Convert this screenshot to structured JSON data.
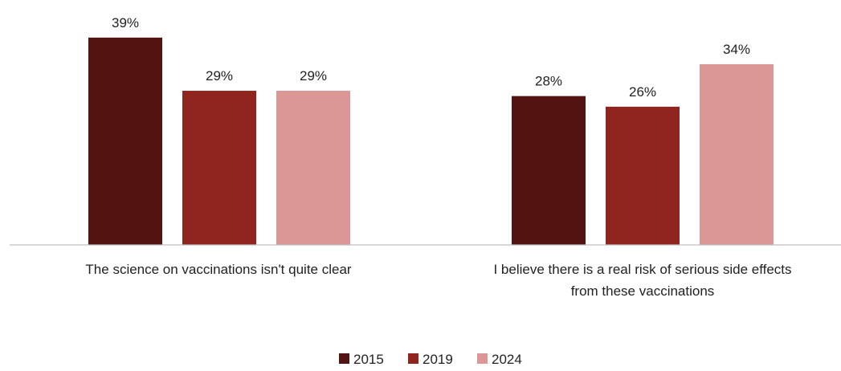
{
  "chart_data": {
    "type": "bar",
    "categories": [
      [
        "The science on vaccinations isn't quite clear"
      ],
      [
        "I believe there is a real risk of serious side effects",
        "from these vaccinations"
      ]
    ],
    "series": [
      {
        "name": "2015",
        "color": "#521311",
        "values": [
          39,
          28
        ],
        "labels": [
          "39%",
          "28%"
        ]
      },
      {
        "name": "2019",
        "color": "#902520",
        "values": [
          29,
          26
        ],
        "labels": [
          "29%",
          "26%"
        ]
      },
      {
        "name": "2024",
        "color": "#DB9696",
        "values": [
          29,
          34
        ],
        "labels": [
          "29%",
          "34%"
        ]
      }
    ],
    "ylim": [
      0,
      40
    ],
    "grid": false,
    "legend_position": "bottom-center",
    "title": "",
    "xlabel": "",
    "ylabel": ""
  }
}
